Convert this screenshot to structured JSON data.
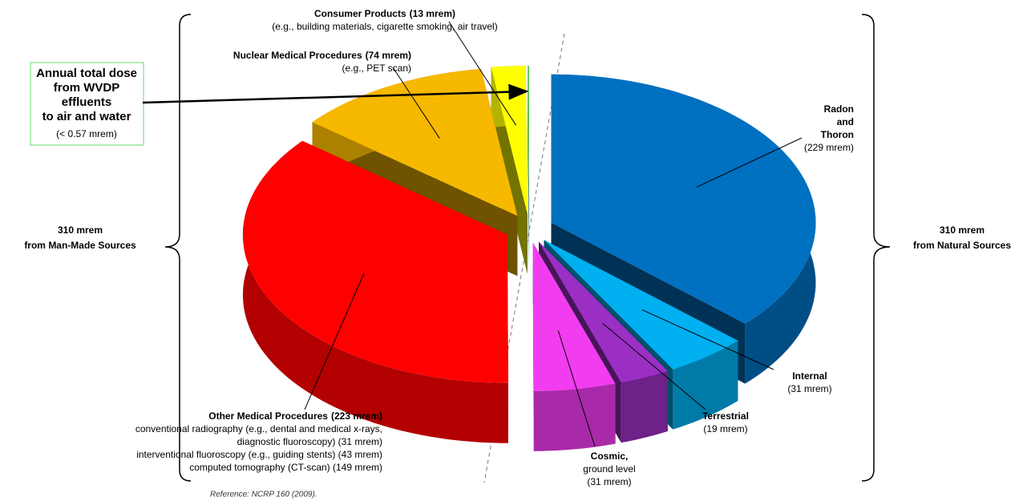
{
  "chart_data": {
    "type": "pie",
    "categories": [
      [
        "Radon",
        "and",
        "Thoron"
      ],
      [
        "Internal"
      ],
      [
        "Terrestrial"
      ],
      [
        "Cosmic,"
      ],
      [
        "Other Medical Procedures"
      ],
      [
        "Nuclear Medical Procedures"
      ],
      [
        "Consumer Products"
      ],
      [
        "Annual total dose",
        "from WVDP",
        "effluents",
        "to air and water"
      ]
    ],
    "values": [
      229,
      31,
      19,
      31,
      223,
      74,
      13,
      0.57
    ],
    "value_labels": [
      "(229 mrem)",
      "(31 mrem)",
      "(19 mrem)",
      "(31 mrem)",
      "(223 mrem)",
      "(74 mrem)",
      "(13 mrem)",
      "(< 0.57 mrem)"
    ],
    "descriptions": [
      [],
      [],
      [],
      [
        "ground level"
      ],
      [
        "conventional radiography (e.g., dental and medical x-rays,",
        "diagnostic fluoroscopy) (31 mrem)",
        "interventional fluoroscopy (e.g., guiding stents) (43 mrem)",
        "computed tomography (CT-scan) (149 mrem)"
      ],
      [
        "(e.g., PET scan)"
      ],
      [
        "(e.g., building materials, cigarette smoking, air travel)"
      ],
      []
    ],
    "colors": [
      "#0070c0",
      "#00b0f0",
      "#9b2fc4",
      "#f23cf0",
      "#ff0000",
      "#f7b800",
      "#ffff00",
      "#5fd35f"
    ],
    "man_made": [
      "310 mrem",
      "from Man-Made Sources"
    ],
    "natural": [
      "310 mrem",
      "from Natural Sources"
    ],
    "reference": "Reference:  NCRP 160 (2009)."
  }
}
